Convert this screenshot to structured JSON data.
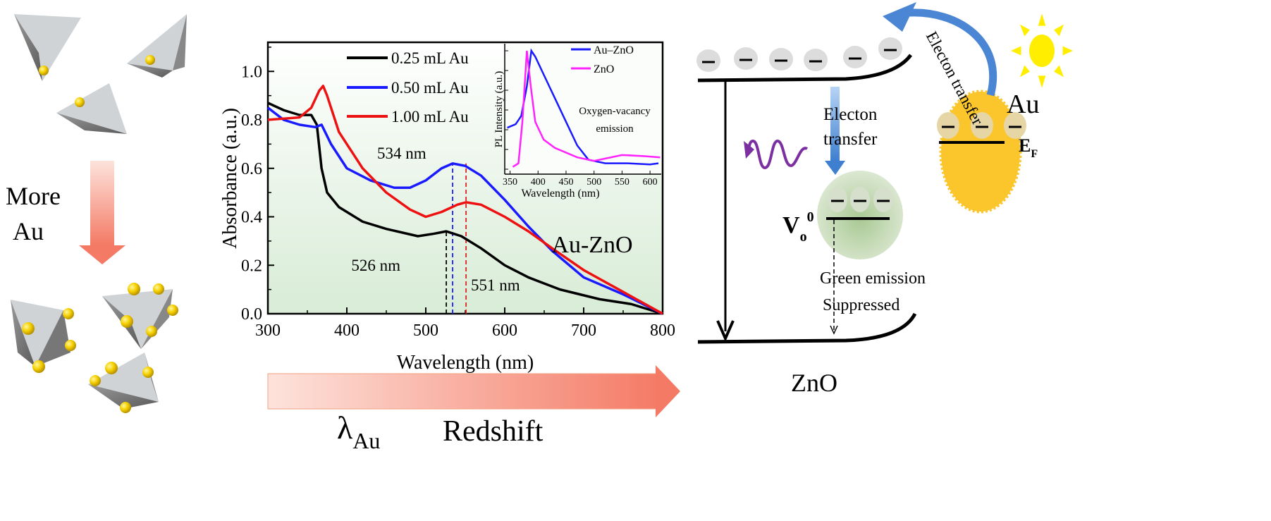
{
  "left_panel": {
    "label_line1": "More",
    "label_line2": "Au"
  },
  "chart_data": {
    "type": "line",
    "xlabel": "Wavelength (nm)",
    "ylabel": "Absorbance (a.u.)",
    "xlim": [
      300,
      800
    ],
    "ylim": [
      0,
      1.12
    ],
    "xticks": [
      "300",
      "400",
      "500",
      "600",
      "700",
      "800"
    ],
    "yticks": [
      "0.0",
      "0.2",
      "0.4",
      "0.6",
      "0.8",
      "1.0"
    ],
    "panel_label": "Au-ZnO",
    "legend_position": "top-center",
    "series": [
      {
        "name": "0.25 mL Au",
        "color": "#000000",
        "x": [
          300,
          320,
          340,
          355,
          362,
          368,
          375,
          390,
          420,
          450,
          490,
          510,
          526,
          545,
          570,
          600,
          630,
          670,
          720,
          760,
          800
        ],
        "y": [
          0.87,
          0.84,
          0.82,
          0.82,
          0.78,
          0.6,
          0.5,
          0.44,
          0.38,
          0.35,
          0.32,
          0.33,
          0.34,
          0.32,
          0.27,
          0.2,
          0.15,
          0.1,
          0.06,
          0.04,
          0.0
        ]
      },
      {
        "name": "0.50 mL Au",
        "color": "#1a1aff",
        "x": [
          300,
          320,
          340,
          360,
          368,
          380,
          400,
          430,
          460,
          480,
          500,
          520,
          534,
          550,
          570,
          600,
          630,
          660,
          700,
          750,
          800
        ],
        "y": [
          0.85,
          0.8,
          0.78,
          0.77,
          0.78,
          0.7,
          0.6,
          0.55,
          0.52,
          0.52,
          0.55,
          0.6,
          0.62,
          0.61,
          0.57,
          0.47,
          0.36,
          0.26,
          0.15,
          0.08,
          0.0
        ]
      },
      {
        "name": "1.00 mL Au",
        "color": "#ee1111",
        "x": [
          300,
          340,
          355,
          365,
          370,
          375,
          390,
          420,
          450,
          480,
          500,
          520,
          540,
          551,
          570,
          600,
          630,
          660,
          700,
          750,
          800
        ],
        "y": [
          0.8,
          0.81,
          0.85,
          0.92,
          0.94,
          0.9,
          0.75,
          0.6,
          0.5,
          0.43,
          0.4,
          0.42,
          0.45,
          0.46,
          0.45,
          0.4,
          0.34,
          0.27,
          0.18,
          0.09,
          0.0
        ]
      }
    ],
    "annotations": [
      {
        "text": "526 nm",
        "x": 526,
        "color": "#000000"
      },
      {
        "text": "534 nm",
        "x": 534,
        "color": "#1a1aff"
      },
      {
        "text": "551 nm",
        "x": 551,
        "color": "#dd2222"
      }
    ],
    "inset": {
      "type": "line",
      "xlabel": "Wavelength (nm)",
      "ylabel": "PL Intensity (a.u.)",
      "xlim": [
        343,
        620
      ],
      "ylim": [
        0,
        1
      ],
      "xticks": [
        "350",
        "400",
        "450",
        "500",
        "550",
        "600"
      ],
      "annotation_line1": "Oxygen-vacancy",
      "annotation_line2": "emission",
      "series": [
        {
          "name": "Au–ZnO",
          "color": "#1a1aff",
          "x": [
            345,
            360,
            370,
            380,
            388,
            395,
            410,
            430,
            450,
            470,
            490,
            520,
            560,
            600,
            615
          ],
          "y": [
            0.35,
            0.38,
            0.45,
            0.7,
            1.0,
            0.95,
            0.8,
            0.6,
            0.4,
            0.2,
            0.08,
            0.05,
            0.05,
            0.04,
            0.05
          ]
        },
        {
          "name": "ZnO",
          "color": "#ff22ff",
          "x": [
            355,
            365,
            372,
            380,
            387,
            395,
            410,
            430,
            470,
            500,
            550,
            590,
            618
          ],
          "y": [
            0.02,
            0.05,
            0.4,
            1.0,
            0.7,
            0.4,
            0.25,
            0.18,
            0.1,
            0.07,
            0.12,
            0.11,
            0.1
          ]
        }
      ]
    }
  },
  "bottom_arrow": {
    "lambda": "λ",
    "lambda_sub": "Au",
    "label": "Redshift"
  },
  "diagram": {
    "electron_symbol": "–",
    "transfer_down_line1": "Electon",
    "transfer_down_line2": "transfer",
    "transfer_up": "Electon transfer",
    "vacancy_main": "V",
    "vacancy_sub": "o",
    "vacancy_sup": "0",
    "green_line1": "Green emission",
    "green_line2": "Suppressed",
    "zno": "ZnO",
    "au": "Au",
    "ef_main": "E",
    "ef_sub": "F",
    "colors": {
      "au_particle": "#fbc52c",
      "sun": "#ffee00",
      "arrow_blue": "#4a86d4",
      "wave": "#7b2fa0",
      "vacancy": "#c8dbb4"
    }
  }
}
